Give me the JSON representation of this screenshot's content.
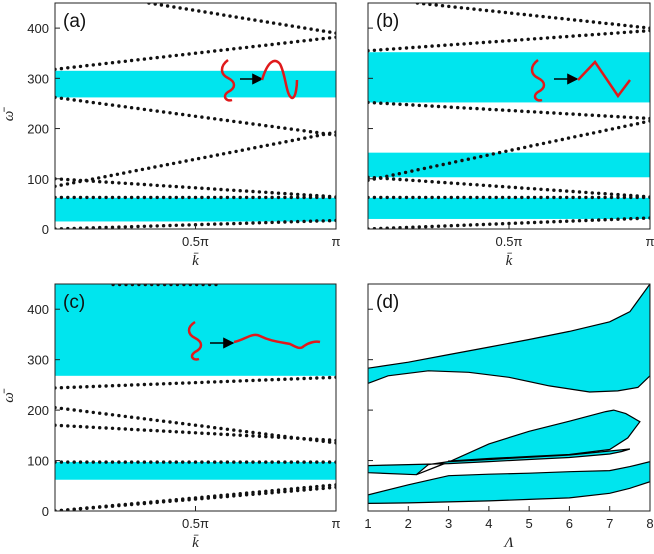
{
  "colors": {
    "band": "#00e5ee",
    "dots": "#111111",
    "shape": "#e0191b",
    "axis": "#222222"
  },
  "chart_data": [
    {
      "id": "a",
      "type": "scatter",
      "panel_label": "(a)",
      "xlabel": "k̄",
      "ylabel": "ω̄",
      "xlim": [
        0,
        3.1416
      ],
      "ylim": [
        0,
        450
      ],
      "xticks": [
        {
          "v": 1.5708,
          "label": "0.5π"
        },
        {
          "v": 3.1416,
          "label": "π"
        }
      ],
      "yticks": [
        {
          "v": 0,
          "label": "0"
        },
        {
          "v": 100,
          "label": "100"
        },
        {
          "v": 200,
          "label": "200"
        },
        {
          "v": 300,
          "label": "300"
        },
        {
          "v": 400,
          "label": "400"
        }
      ],
      "bands": [
        [
          15,
          62
        ],
        [
          262,
          315
        ]
      ],
      "branches": [
        [
          [
            0,
            0
          ],
          [
            3.1416,
            17
          ]
        ],
        [
          [
            0,
            63
          ],
          [
            3.1416,
            63
          ]
        ],
        [
          [
            0,
            100
          ],
          [
            3.1416,
            64
          ]
        ],
        [
          [
            0,
            85
          ],
          [
            3.1416,
            193
          ]
        ],
        [
          [
            0,
            262
          ],
          [
            3.1416,
            187
          ]
        ],
        [
          [
            0,
            318
          ],
          [
            3.1416,
            382
          ]
        ],
        [
          [
            1.05,
            450
          ],
          [
            3.1416,
            390
          ]
        ]
      ]
    },
    {
      "id": "b",
      "type": "scatter",
      "panel_label": "(b)",
      "xlabel": "k̄",
      "ylabel": "",
      "xlim": [
        0,
        3.1416
      ],
      "ylim": [
        0,
        450
      ],
      "xticks": [
        {
          "v": 1.5708,
          "label": "0.5π"
        },
        {
          "v": 3.1416,
          "label": "π"
        }
      ],
      "yticks": [],
      "bands": [
        [
          20,
          62
        ],
        [
          103,
          152
        ],
        [
          252,
          352
        ]
      ],
      "branches": [
        [
          [
            0,
            0
          ],
          [
            3.1416,
            22
          ]
        ],
        [
          [
            0,
            63
          ],
          [
            3.1416,
            63
          ]
        ],
        [
          [
            0,
            103
          ],
          [
            3.1416,
            64
          ]
        ],
        [
          [
            0,
            97
          ],
          [
            3.1416,
            215
          ]
        ],
        [
          [
            0,
            252
          ],
          [
            3.1416,
            220
          ]
        ],
        [
          [
            0,
            355
          ],
          [
            3.1416,
            395
          ]
        ],
        [
          [
            0.55,
            450
          ],
          [
            3.1416,
            400
          ]
        ]
      ]
    },
    {
      "id": "c",
      "type": "scatter",
      "panel_label": "(c)",
      "xlabel": "k̄",
      "ylabel": "ω̄",
      "xlim": [
        0,
        3.1416
      ],
      "ylim": [
        0,
        450
      ],
      "xticks": [
        {
          "v": 1.5708,
          "label": "0.5π"
        },
        {
          "v": 3.1416,
          "label": "π"
        }
      ],
      "yticks": [
        {
          "v": 0,
          "label": "0"
        },
        {
          "v": 100,
          "label": "100"
        },
        {
          "v": 200,
          "label": "200"
        },
        {
          "v": 300,
          "label": "300"
        },
        {
          "v": 400,
          "label": "400"
        }
      ],
      "bands": [
        [
          62,
          97
        ],
        [
          268,
          450
        ]
      ],
      "branches": [
        [
          [
            0,
            0
          ],
          [
            3.1416,
            47
          ]
        ],
        [
          [
            0,
            0
          ],
          [
            3.1416,
            52
          ]
        ],
        [
          [
            0,
            97
          ],
          [
            3.1416,
            97
          ]
        ],
        [
          [
            0,
            170
          ],
          [
            3.1416,
            140
          ]
        ],
        [
          [
            0,
            205
          ],
          [
            3.1416,
            135
          ]
        ],
        [
          [
            0,
            244
          ],
          [
            3.1416,
            265
          ]
        ],
        [
          [
            0.65,
            449
          ],
          [
            1.8,
            449
          ]
        ]
      ]
    },
    {
      "id": "d",
      "type": "area",
      "panel_label": "(d)",
      "xlabel": "Λ",
      "ylabel": "",
      "xlim": [
        1,
        8
      ],
      "ylim": [
        0,
        450
      ],
      "xticks": [
        {
          "v": 1,
          "label": "1"
        },
        {
          "v": 2,
          "label": "2"
        },
        {
          "v": 3,
          "label": "3"
        },
        {
          "v": 4,
          "label": "4"
        },
        {
          "v": 5,
          "label": "5"
        },
        {
          "v": 6,
          "label": "6"
        },
        {
          "v": 7,
          "label": "7"
        },
        {
          "v": 8,
          "label": "8"
        }
      ],
      "yticks": [],
      "regions": [
        [
          [
            1,
            283
          ],
          [
            2,
            295
          ],
          [
            3,
            310
          ],
          [
            4,
            325
          ],
          [
            5,
            340
          ],
          [
            6,
            356
          ],
          [
            7,
            375
          ],
          [
            7.5,
            395
          ],
          [
            8,
            450
          ],
          [
            8,
            268
          ],
          [
            7.7,
            245
          ],
          [
            7.2,
            238
          ],
          [
            6.5,
            236
          ],
          [
            5.5,
            248
          ],
          [
            4.5,
            265
          ],
          [
            3.5,
            275
          ],
          [
            2.5,
            278
          ],
          [
            1.5,
            268
          ],
          [
            1,
            253
          ]
        ],
        [
          [
            2.2,
            72
          ],
          [
            3,
            97
          ],
          [
            4,
            133
          ],
          [
            5,
            158
          ],
          [
            6,
            178
          ],
          [
            6.9,
            197
          ],
          [
            7.1,
            200
          ],
          [
            7.4,
            193
          ],
          [
            7.75,
            177
          ],
          [
            7.45,
            145
          ],
          [
            7,
            122
          ],
          [
            6,
            112
          ],
          [
            5,
            108
          ],
          [
            4,
            104
          ],
          [
            3,
            99
          ],
          [
            3,
            97
          ],
          [
            2.8,
            91
          ],
          [
            2.2,
            72
          ]
        ],
        [
          [
            1,
            90
          ],
          [
            2,
            92
          ],
          [
            3,
            94
          ],
          [
            4,
            98
          ],
          [
            5,
            102
          ],
          [
            6,
            106
          ],
          [
            7,
            113
          ],
          [
            7.3,
            118
          ],
          [
            7.5,
            123
          ],
          [
            6,
            111
          ],
          [
            4,
            102
          ],
          [
            3,
            98
          ],
          [
            2.5,
            92
          ],
          [
            2.2,
            72
          ],
          [
            1,
            76
          ]
        ],
        [
          [
            1,
            15
          ],
          [
            2,
            16
          ],
          [
            3,
            18
          ],
          [
            4,
            20
          ],
          [
            5,
            23
          ],
          [
            6,
            26
          ],
          [
            7,
            35
          ],
          [
            7.5,
            45
          ],
          [
            8,
            58
          ],
          [
            8,
            98
          ],
          [
            7.5,
            88
          ],
          [
            7,
            80
          ],
          [
            6,
            78
          ],
          [
            5,
            75
          ],
          [
            4,
            73
          ],
          [
            3,
            70
          ],
          [
            2,
            52
          ],
          [
            1,
            32
          ]
        ]
      ]
    }
  ]
}
